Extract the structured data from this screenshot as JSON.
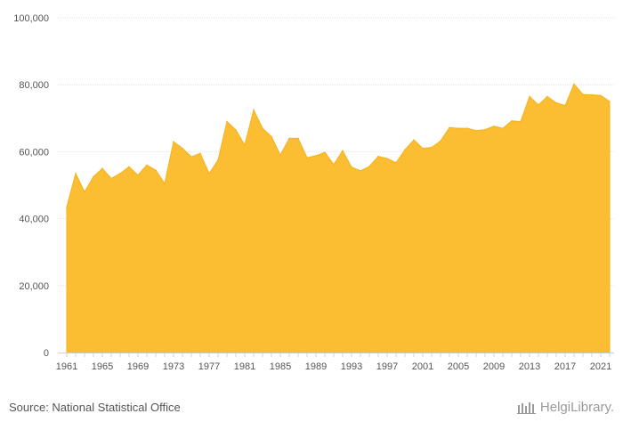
{
  "source_text": "Source: National Statistical Office",
  "logo_text": "HelgiLibrary.",
  "chart_data": {
    "type": "area",
    "title": "",
    "xlabel": "",
    "ylabel": "",
    "color": "#FBBD32",
    "ylim": [
      0,
      100000
    ],
    "y_ticks": [
      0,
      20000,
      40000,
      60000,
      80000,
      100000
    ],
    "y_tick_labels": [
      "0",
      "20,000",
      "40,000",
      "60,000",
      "80,000",
      "100,000"
    ],
    "x_tick_labels": [
      "1961",
      "1965",
      "1969",
      "1973",
      "1977",
      "1981",
      "1985",
      "1989",
      "1993",
      "1997",
      "2001",
      "2005",
      "2009",
      "2013",
      "2017",
      "2021"
    ],
    "grid": true,
    "x": [
      1961,
      1962,
      1963,
      1964,
      1965,
      1966,
      1967,
      1968,
      1969,
      1970,
      1971,
      1972,
      1973,
      1974,
      1975,
      1976,
      1977,
      1978,
      1979,
      1980,
      1981,
      1982,
      1983,
      1984,
      1985,
      1986,
      1987,
      1988,
      1989,
      1990,
      1991,
      1992,
      1993,
      1994,
      1995,
      1996,
      1997,
      1998,
      1999,
      2000,
      2001,
      2002,
      2003,
      2004,
      2005,
      2006,
      2007,
      2008,
      2009,
      2010,
      2011,
      2012,
      2013,
      2014,
      2015,
      2016,
      2017,
      2018,
      2019,
      2020,
      2021,
      2022
    ],
    "series": [
      {
        "values": [
          43500,
          53500,
          48000,
          52500,
          55000,
          52000,
          53500,
          55500,
          53000,
          56000,
          54500,
          50500,
          63000,
          61000,
          58500,
          59500,
          53500,
          57500,
          69000,
          66500,
          62000,
          72500,
          67000,
          64500,
          59000,
          64000,
          64000,
          58200,
          58800,
          59800,
          56200,
          60300,
          55400,
          54300,
          55600,
          58600,
          58000,
          56700,
          60600,
          63500,
          61000,
          61300,
          63200,
          67200,
          67000,
          67000,
          66300,
          66600,
          67600,
          67000,
          69200,
          69000,
          76500,
          74000,
          76500,
          74600,
          73800,
          80200,
          77100,
          77000,
          76800,
          75000
        ]
      }
    ]
  }
}
